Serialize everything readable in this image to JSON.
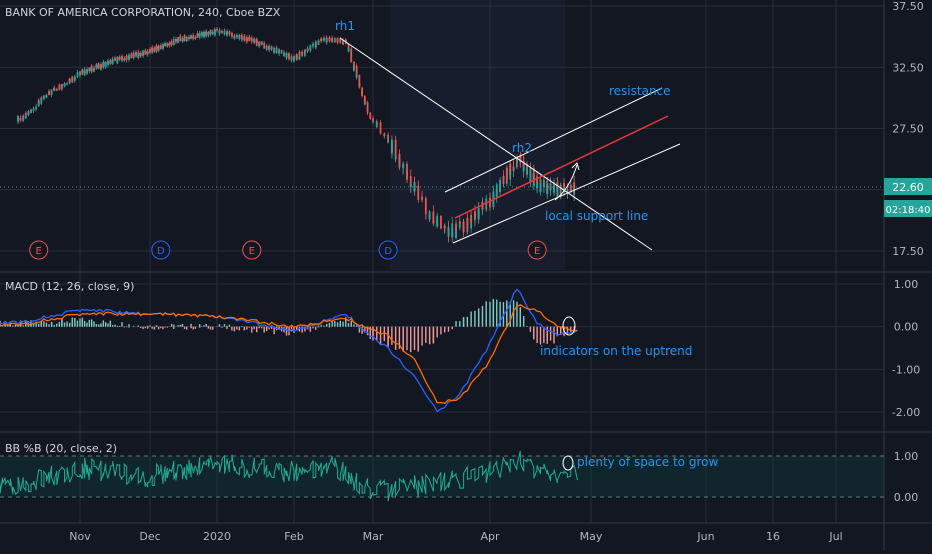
{
  "symbol_title": "BANK OF AMERICA CORPORATION, 240, Cboe BZX",
  "price_axis": {
    "ticks": [
      "37.50",
      "32.50",
      "27.50",
      "22.60",
      "17.50"
    ],
    "last_price": "22.60",
    "countdown": "02:18:40"
  },
  "time_axis": {
    "labels": [
      "Nov",
      "Dec",
      "2020",
      "Feb",
      "Mar",
      "Apr",
      "May",
      "Jun",
      "16",
      "Jul"
    ]
  },
  "event_markers": [
    "E",
    "D",
    "E",
    "D",
    "E"
  ],
  "annotations": {
    "rh1": "rh1",
    "rh2": "rh2",
    "resistance": "resistance",
    "local_support": "local support line",
    "macd_note": "indicators on the uptrend",
    "bb_note": "plenty of space to grow"
  },
  "macd": {
    "title": "MACD (12, 26, close, 9)",
    "ticks": [
      "1.00",
      "0.00",
      "-1.00",
      "-2.00"
    ]
  },
  "bb": {
    "title": "BB %B (20, close, 2)",
    "ticks": [
      "1.00",
      "0.00"
    ]
  },
  "colors": {
    "background": "#131722",
    "grid": "#2a2e39",
    "up": "#26a69a",
    "down": "#ef5350",
    "macd_line": "#2962ff",
    "signal_line": "#ff6d00",
    "bb_line": "#22ab94",
    "annotation": "#2196f3",
    "red_trend": "#e53935",
    "white_trend": "#ffffff"
  },
  "chart_data": [
    {
      "type": "line",
      "title": "BANK OF AMERICA CORPORATION, 240, Cboe BZX",
      "series": [
        {
          "x": [
            "2019-10-10",
            "2019-10-20",
            "2019-11-01",
            "2019-11-15",
            "2019-12-01",
            "2019-12-15",
            "2020-01-01",
            "2020-01-15",
            "2020-02-01",
            "2020-02-12",
            "2020-02-20",
            "2020-02-28",
            "2020-03-05",
            "2020-03-10",
            "2020-03-16",
            "2020-03-23",
            "2020-04-01",
            "2020-04-09",
            "2020-04-15",
            "2020-04-21",
            "2020-04-27"
          ],
          "values": [
            28.3,
            30.4,
            32.0,
            33.0,
            33.8,
            34.8,
            35.4,
            34.7,
            33.2,
            34.8,
            34.5,
            29.0,
            26.5,
            23.8,
            20.2,
            19.0,
            21.5,
            25.0,
            23.0,
            22.5,
            22.6
          ]
        }
      ],
      "ylim": [
        16.5,
        38.0
      ],
      "yticks": [
        37.5,
        32.5,
        27.5,
        22.6,
        17.5
      ]
    },
    {
      "type": "line",
      "title": "MACD (12, 26, close, 9)",
      "series": [
        {
          "x": [
            "2019-10-10",
            "2019-11-01",
            "2019-12-01",
            "2020-01-01",
            "2020-02-01",
            "2020-02-20",
            "2020-03-05",
            "2020-03-12",
            "2020-03-18",
            "2020-03-24",
            "2020-04-01",
            "2020-04-09",
            "2020-04-15",
            "2020-04-21",
            "2020-04-27"
          ],
          "values": [
            0.1,
            0.4,
            0.3,
            0.25,
            -0.1,
            0.3,
            -0.5,
            -1.2,
            -2.0,
            -1.6,
            -0.4,
            0.9,
            0.1,
            -0.2,
            -0.1
          ]
        },
        {
          "x": [
            "2019-10-10",
            "2019-11-01",
            "2019-12-01",
            "2020-01-01",
            "2020-02-01",
            "2020-02-20",
            "2020-03-05",
            "2020-03-12",
            "2020-03-18",
            "2020-03-24",
            "2020-04-01",
            "2020-04-09",
            "2020-04-15",
            "2020-04-21",
            "2020-04-27"
          ],
          "values": [
            0.05,
            0.3,
            0.3,
            0.25,
            0.0,
            0.2,
            -0.2,
            -0.8,
            -1.8,
            -1.7,
            -0.8,
            0.5,
            0.4,
            0.0,
            -0.1
          ]
        }
      ],
      "ylim": [
        -2.2,
        1.2
      ],
      "yticks": [
        1.0,
        0.0,
        -1.0,
        -2.0
      ]
    },
    {
      "type": "line",
      "title": "BB %B (20, close, 2)",
      "series": [
        {
          "x": [
            "2019-10-10",
            "2019-11-01",
            "2019-12-01",
            "2020-01-01",
            "2020-02-01",
            "2020-02-15",
            "2020-03-01",
            "2020-03-15",
            "2020-04-01",
            "2020-04-10",
            "2020-04-20",
            "2020-04-27"
          ],
          "values": [
            0.3,
            0.7,
            0.5,
            0.8,
            0.6,
            0.8,
            0.1,
            0.3,
            0.6,
            0.9,
            0.4,
            0.6
          ]
        }
      ],
      "ylim": [
        -0.3,
        1.3
      ],
      "yticks": [
        1.0,
        0.0
      ]
    }
  ]
}
